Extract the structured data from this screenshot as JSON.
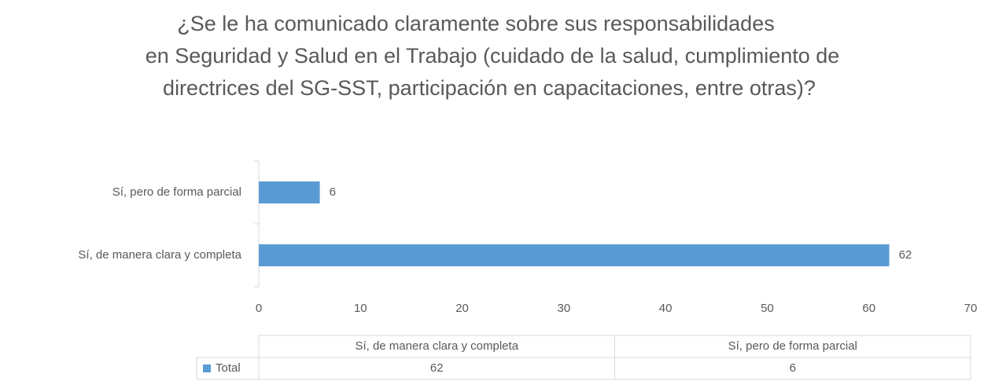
{
  "chart_data": {
    "type": "bar",
    "orientation": "horizontal",
    "title": [
      "¿Se le ha comunicado claramente sobre sus responsabilidades",
      "en Seguridad y Salud en el Trabajo (cuidado de la salud, cumplimiento de",
      "directrices del SG-SST, participación en capacitaciones, entre otras)?"
    ],
    "categories": [
      "Sí, de manera clara y completa",
      "Sí, pero de forma parcial"
    ],
    "series": [
      {
        "name": "Total",
        "color": "#5b9bd5",
        "values": [
          62,
          6
        ]
      }
    ],
    "xlim": [
      0,
      70
    ],
    "xticks": [
      0,
      10,
      20,
      30,
      40,
      50,
      60,
      70
    ],
    "grid": false,
    "data_table": true
  }
}
